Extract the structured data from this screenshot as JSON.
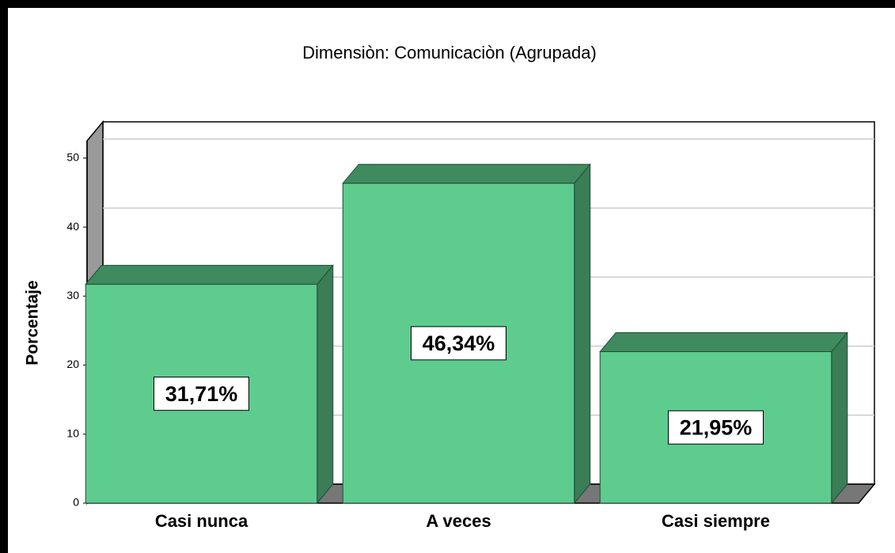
{
  "chart_data": {
    "type": "bar3d",
    "title": "Dimensiòn: Comunicaciòn (Agrupada)",
    "ylabel": "Porcentaje",
    "categories": [
      "Casi nunca",
      "A veces",
      "Casi siempre"
    ],
    "values": [
      31.71,
      46.34,
      21.95
    ],
    "value_labels": [
      "31,71%",
      "46,34%",
      "21,95%"
    ],
    "color": "#5ecb8f",
    "ylim": [
      0,
      52.5
    ],
    "yticks": [
      0,
      10,
      20,
      30,
      40,
      50
    ],
    "grid": true
  }
}
